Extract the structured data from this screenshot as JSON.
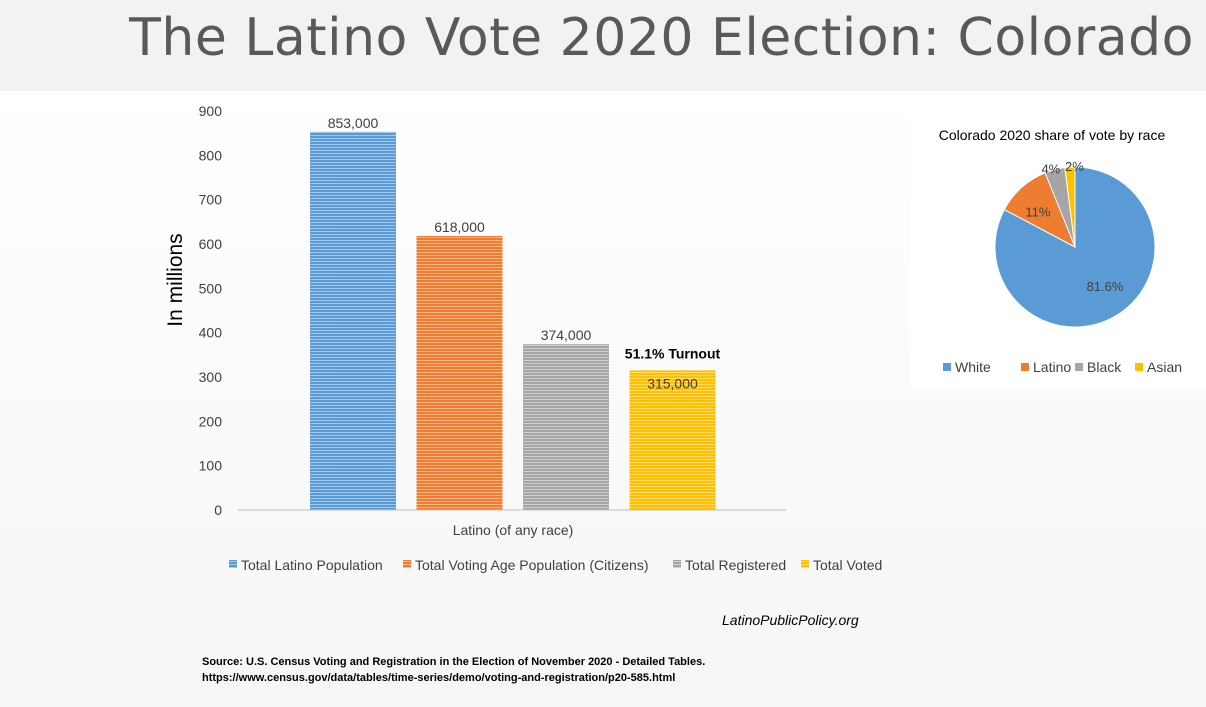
{
  "title": "The Latino Vote 2020 Election: Colorado",
  "bar_chart": {
    "type": "bar",
    "categories": [
      "Latino (of any race)"
    ],
    "ylabel": "In millions",
    "ylim": [
      0,
      900
    ],
    "yticks": [
      0,
      100,
      200,
      300,
      400,
      500,
      600,
      700,
      800,
      900
    ],
    "series": [
      {
        "name": "Total Latino Population",
        "values": [
          853
        ],
        "label": "853,000",
        "color": "#5b9bd5"
      },
      {
        "name": "Total Voting Age Population (Citizens)",
        "values": [
          618
        ],
        "label": "618,000",
        "color": "#ed7d31"
      },
      {
        "name": "Total Registered",
        "values": [
          374
        ],
        "label": "374,000",
        "color": "#a5a5a5"
      },
      {
        "name": "Total Voted",
        "values": [
          315
        ],
        "label": "315,000",
        "color": "#ffc000"
      }
    ],
    "annotation": "51.1% Turnout",
    "grid": false,
    "legend": "bottom"
  },
  "chart_data": [
    {
      "type": "bar",
      "categories": [
        "Latino (of any race)"
      ],
      "ylabel": "In millions",
      "ylim": [
        0,
        900
      ],
      "series": [
        {
          "name": "Total Latino Population",
          "values": [
            853
          ]
        },
        {
          "name": "Total Voting Age Population (Citizens)",
          "values": [
            618
          ]
        },
        {
          "name": "Total Registered",
          "values": [
            374
          ]
        },
        {
          "name": "Total Voted",
          "values": [
            315
          ]
        }
      ],
      "data_labels": [
        "853,000",
        "618,000",
        "374,000",
        "315,000"
      ],
      "annotation": "51.1% Turnout",
      "legend": "bottom"
    },
    {
      "type": "pie",
      "title": "Colorado 2020 share of vote by race",
      "categories": [
        "White",
        "Latino",
        "Black",
        "Asian"
      ],
      "values": [
        81.6,
        11,
        4,
        2
      ],
      "data_labels": [
        "81.6%",
        "11%",
        "4%",
        "2%"
      ],
      "legend": "bottom"
    }
  ],
  "pie_chart": {
    "title": "Colorado 2020 share of vote by race",
    "slices": [
      {
        "name": "White",
        "value": 81.6,
        "label": "81.6%",
        "color": "#5b9bd5"
      },
      {
        "name": "Latino",
        "value": 11,
        "label": "11%",
        "color": "#ed7d31"
      },
      {
        "name": "Black",
        "value": 4,
        "label": "4%",
        "color": "#a5a5a5"
      },
      {
        "name": "Asian",
        "value": 2,
        "label": "2%",
        "color": "#ffc000"
      }
    ]
  },
  "footer": {
    "site": "LatinoPublicPolicy.org",
    "source_line1": "Source: U.S. Census  Voting and Registration in the Election of November 2020 - Detailed Tables.",
    "source_line2": "https://www.census.gov/data/tables/time-series/demo/voting-and-registration/p20-585.html"
  }
}
